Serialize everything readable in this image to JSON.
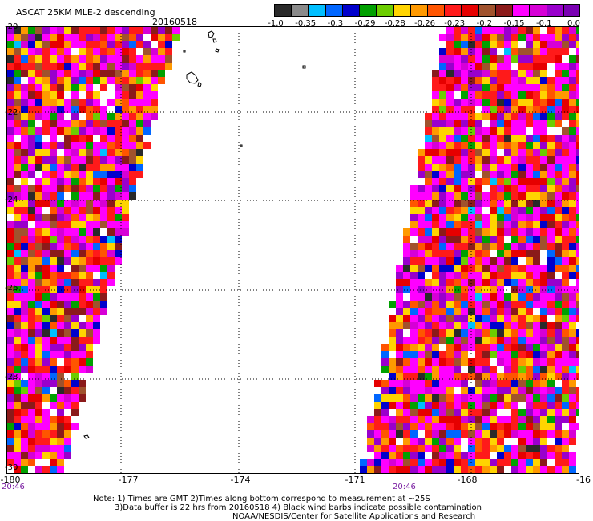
{
  "header": {
    "title": "ASCAT 25KM MLE-2 descending",
    "date": "20160518"
  },
  "colorbar": {
    "colors": [
      "#2a2a2a",
      "#8a8a8a",
      "#00bfff",
      "#0066ff",
      "#0000cc",
      "#00a000",
      "#6ccd00",
      "#ffd400",
      "#ff9900",
      "#ff5500",
      "#ff1a1a",
      "#e60000",
      "#a0522d",
      "#8b1a1a",
      "#ff00ff",
      "#d600d6",
      "#9900cc",
      "#7a00b3"
    ],
    "tick_labels": [
      "-1.0",
      "-0.35",
      "-0.3",
      "-0.29",
      "-0.28",
      "-0.26",
      "-0.23",
      "-0.2",
      "-0.15",
      "-0.1",
      "0.0"
    ]
  },
  "map": {
    "lat_labels": [
      "-20",
      "-22",
      "-24",
      "-26",
      "-28",
      "-30"
    ],
    "lon_labels": [
      "-180",
      "-177",
      "-174",
      "-171",
      "-168",
      "-16"
    ],
    "time_labels": [
      "20:46",
      "20:46"
    ]
  },
  "notes": {
    "line1": "Note: 1) Times are GMT 2)Times along bottom correspond to measurement at ~25S",
    "line2": "3)Data buffer is 22 hrs from 20160518 4) Black wind barbs indicate possible contamination",
    "line3": "NOAA/NESDIS/Center for Satellite Applications and Research"
  }
}
